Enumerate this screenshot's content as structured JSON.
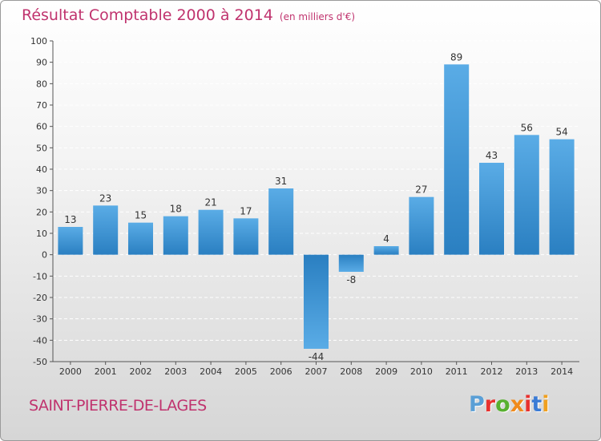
{
  "chart_data": {
    "type": "bar",
    "title": "Résultat Comptable 2000 à 2014",
    "subtitle": "(en milliers d'€)",
    "categories": [
      "2000",
      "2001",
      "2002",
      "2003",
      "2004",
      "2005",
      "2006",
      "2007",
      "2008",
      "2009",
      "2010",
      "2011",
      "2012",
      "2013",
      "2014"
    ],
    "values": [
      13,
      23,
      15,
      18,
      21,
      17,
      31,
      -44,
      -8,
      4,
      27,
      89,
      43,
      56,
      54
    ],
    "ylim": [
      -50,
      100
    ],
    "yticks": [
      100,
      90,
      80,
      70,
      60,
      50,
      40,
      30,
      20,
      10,
      0,
      -10,
      -20,
      -30,
      -40,
      -50
    ],
    "xlabel": "",
    "ylabel": "",
    "grid": "horizontal-dashed",
    "colors": {
      "bar_light": "#5aace6",
      "bar_dark": "#2a7fc1",
      "grid": "#ffffff",
      "axis": "#555555"
    }
  },
  "footer": {
    "commune": "SAINT-PIERRE-DE-LAGES",
    "brand": "Proxiti"
  },
  "colors": {
    "title": "#c0336e",
    "brand_letters": [
      "#5a9fd6",
      "#e8322f",
      "#58b030",
      "#f08a1c",
      "#e8322f",
      "#3a7bd5",
      "#f0a020"
    ]
  }
}
